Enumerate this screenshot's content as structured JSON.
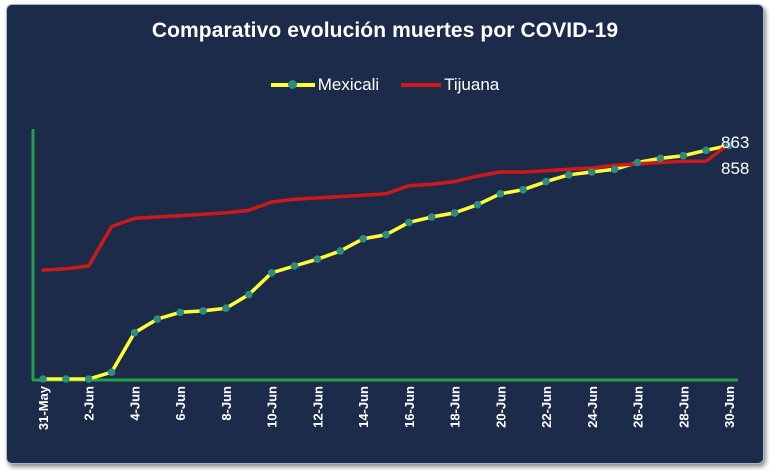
{
  "chart_data": {
    "type": "line",
    "title": "Comparativo evolución muertes por COVID-19",
    "xlabel": "",
    "ylabel": "",
    "ylim": [
      0,
      900
    ],
    "grid": false,
    "legend_position": "top-center",
    "categories": [
      "31-May",
      "1-Jun",
      "2-Jun",
      "3-Jun",
      "4-Jun",
      "5-Jun",
      "6-Jun",
      "7-Jun",
      "8-Jun",
      "9-Jun",
      "10-Jun",
      "11-Jun",
      "12-Jun",
      "13-Jun",
      "14-Jun",
      "15-Jun",
      "16-Jun",
      "17-Jun",
      "18-Jun",
      "19-Jun",
      "20-Jun",
      "21-Jun",
      "22-Jun",
      "23-Jun",
      "24-Jun",
      "25-Jun",
      "26-Jun",
      "27-Jun",
      "28-Jun",
      "29-Jun",
      "30-Jun"
    ],
    "tick_labels": [
      "31-May",
      "2-Jun",
      "4-Jun",
      "6-Jun",
      "8-Jun",
      "10-Jun",
      "12-Jun",
      "14-Jun",
      "16-Jun",
      "18-Jun",
      "20-Jun",
      "22-Jun",
      "24-Jun",
      "26-Jun",
      "28-Jun",
      "30-Jun"
    ],
    "series": [
      {
        "name": "Mexicali",
        "color": "#ffff33",
        "marker_color": "#2e8b80",
        "values": [
          0,
          0,
          0,
          25,
          170,
          220,
          245,
          250,
          260,
          310,
          390,
          415,
          440,
          470,
          515,
          530,
          575,
          595,
          610,
          640,
          680,
          695,
          725,
          750,
          760,
          770,
          795,
          810,
          820,
          840,
          858
        ],
        "end_label": "858"
      },
      {
        "name": "Tijuana",
        "color": "#cc1a1a",
        "values": [
          400,
          405,
          415,
          560,
          590,
          595,
          600,
          605,
          610,
          620,
          650,
          660,
          665,
          670,
          675,
          680,
          710,
          715,
          725,
          745,
          760,
          760,
          765,
          770,
          775,
          785,
          790,
          795,
          800,
          800,
          863
        ],
        "end_label": "863"
      }
    ],
    "axis_color": "#22a04b",
    "background_color": "#1c2b4a"
  }
}
